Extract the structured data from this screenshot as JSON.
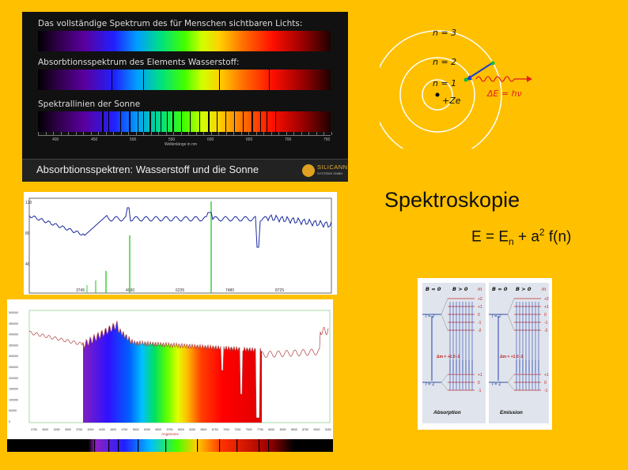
{
  "panel1": {
    "label1": "Das vollständige Spektrum des für Menschen sichtbaren Lichts:",
    "label2": "Absorbtionsspektrum des Elements Wasserstoff:",
    "label3": "Spektrallinien der Sonne",
    "ticks": [
      "400",
      "450",
      "500",
      "550",
      "600",
      "650",
      "700",
      "750"
    ],
    "axis_label": "Wellenlänge in nm",
    "footer": "Absorbtionsspektren: Wasserstoff und die Sonne",
    "logo": "SILICANN",
    "logo_sub": "SYSTEMS GMBH"
  },
  "bohr": {
    "n3": "n = 3",
    "n2": "n = 2",
    "n1": "n = 1",
    "nucleus": "+Ze",
    "energy": "ΔE = hν"
  },
  "title": "Spektroskopie",
  "formula": {
    "lhs": "E = E",
    "sub": "n",
    "mid": " + a",
    "sup": "2",
    "rhs": " f(n)"
  },
  "chart1": {
    "yticks": [
      "120",
      "80",
      "40"
    ],
    "xticks": [
      "3745",
      "4990",
      "6235",
      "7480",
      "8725"
    ]
  },
  "chart2": {
    "xlabel": "Angstroms",
    "yticks": [
      "500000",
      "450000",
      "400000",
      "350000",
      "300000",
      "250000",
      "200000",
      "150000",
      "100000",
      "50000",
      "0"
    ],
    "xticks": [
      "2750",
      "3000",
      "3250",
      "3500",
      "3750",
      "4000",
      "4250",
      "4500",
      "4750",
      "5000",
      "5250",
      "5500",
      "5750",
      "6000",
      "6250",
      "6500",
      "6750",
      "7000",
      "7250",
      "7500",
      "7750",
      "8000",
      "8250",
      "8500",
      "8750",
      "9000",
      "9250"
    ]
  },
  "zeeman": {
    "b0": "B = 0",
    "bgt": "B > 0",
    "m": "m",
    "l2": "l = 2",
    "l1": "l = 1",
    "m_upper": [
      "+2",
      "+1",
      "0",
      "-1",
      "-2"
    ],
    "m_lower": [
      "+1",
      "0",
      "-1"
    ],
    "delta": "Δm = +1  0  -1",
    "absorption": "Absorption",
    "emission": "Emission"
  }
}
